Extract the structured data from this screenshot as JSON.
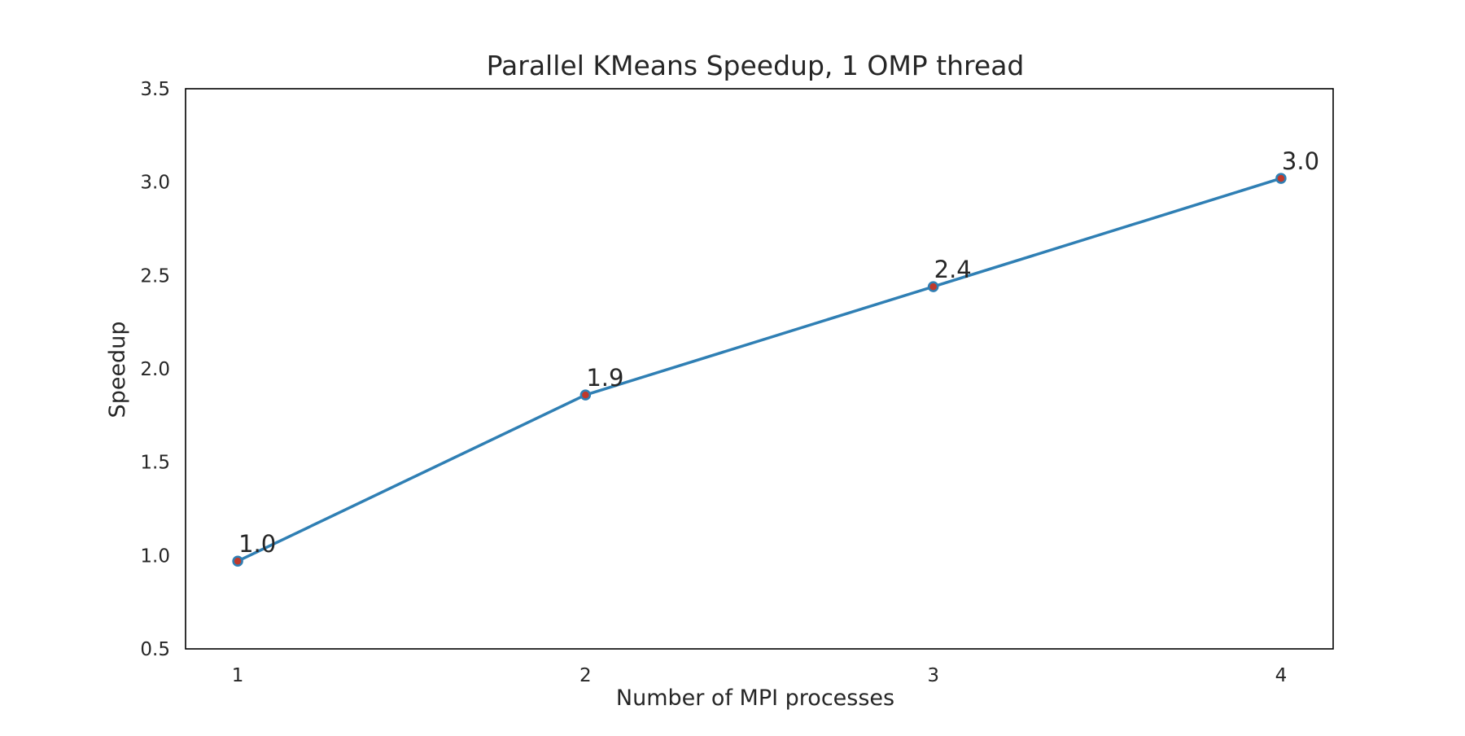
{
  "chart_data": {
    "type": "line",
    "title": "Parallel KMeans Speedup, 1 OMP thread",
    "xlabel": "Number of MPI processes",
    "ylabel": "Speedup",
    "x": [
      1,
      2,
      3,
      4
    ],
    "series": [
      {
        "values": [
          0.97,
          1.86,
          2.44,
          3.02
        ],
        "point_labels": [
          "1.0",
          "1.9",
          "2.4",
          "3.0"
        ]
      }
    ],
    "xticks": [
      "1",
      "2",
      "3",
      "4"
    ],
    "yticks": [
      "0.5",
      "1.0",
      "1.5",
      "2.0",
      "2.5",
      "3.0",
      "3.5"
    ],
    "ylim": [
      0.5,
      3.5
    ],
    "xlim": [
      0.85,
      4.15
    ],
    "grid": false,
    "legend": "none",
    "colors": {
      "line": "#2f7fb4",
      "marker_edge": "#2f7fb4",
      "marker_fill": "#c0392b",
      "axes": "#000000",
      "text": "#262626"
    }
  }
}
